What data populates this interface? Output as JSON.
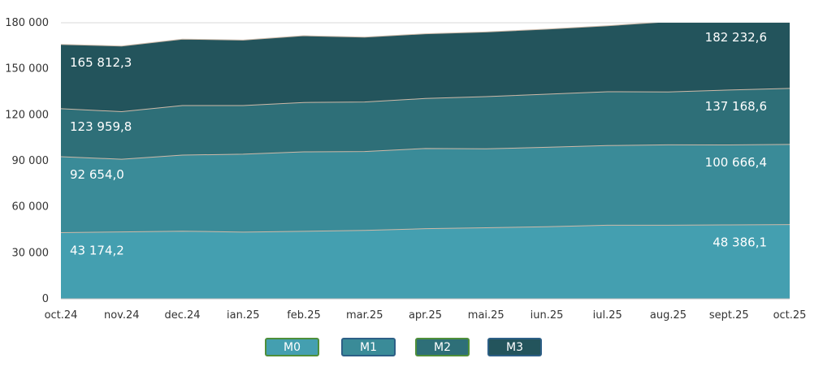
{
  "chart_data": {
    "type": "area",
    "stacked": true,
    "categories": [
      "oct.24",
      "nov.24",
      "dec.24",
      "ian.25",
      "feb.25",
      "mar.25",
      "apr.25",
      "mai.25",
      "iun.25",
      "iul.25",
      "aug.25",
      "sept.25",
      "oct.25"
    ],
    "ylim": [
      0,
      180000
    ],
    "yticks": [
      0,
      30000,
      60000,
      90000,
      120000,
      150000,
      180000
    ],
    "ytick_labels": [
      "0",
      "30 000",
      "60 000",
      "90 000",
      "120 000",
      "150 000",
      "180 000"
    ],
    "grid": true,
    "legend_position": "bottom",
    "series": [
      {
        "name": "M0",
        "color": "#449fb0",
        "cumulative": [
          43174.2,
          43600,
          44100,
          43500,
          44000,
          44600,
          45700,
          46300,
          47000,
          48000,
          48000,
          48200,
          48386.1
        ]
      },
      {
        "name": "M1",
        "color": "#3a8b98",
        "cumulative": [
          92654.0,
          91000,
          93700,
          94300,
          95800,
          96000,
          98000,
          97800,
          98800,
          99900,
          100400,
          100300,
          100666.4
        ]
      },
      {
        "name": "M2",
        "color": "#2e6f78",
        "cumulative": [
          123959.8,
          122000,
          126000,
          126000,
          128000,
          128300,
          130600,
          131800,
          133400,
          135000,
          134900,
          136100,
          137168.6
        ]
      },
      {
        "name": "M3",
        "color": "#23545c",
        "cumulative": [
          165812.3,
          164800,
          169300,
          168700,
          171500,
          170600,
          172800,
          174000,
          175800,
          178000,
          180700,
          181400,
          182232.6
        ]
      }
    ],
    "data_labels": [
      {
        "series": "M0",
        "position": "first",
        "text": "43 174,2"
      },
      {
        "series": "M0",
        "position": "last",
        "text": "48 386,1"
      },
      {
        "series": "M1",
        "position": "first",
        "text": "92 654,0"
      },
      {
        "series": "M1",
        "position": "last",
        "text": "100 666,4"
      },
      {
        "series": "M2",
        "position": "first",
        "text": "123 959,8"
      },
      {
        "series": "M2",
        "position": "last",
        "text": "137 168,6"
      },
      {
        "series": "M3",
        "position": "first",
        "text": "165 812,3"
      },
      {
        "series": "M3",
        "position": "last",
        "text": "182 232,6"
      }
    ]
  },
  "legend": {
    "items": [
      {
        "label": "M0",
        "color": "#449fb0",
        "border": "#4f8f3a"
      },
      {
        "label": "M1",
        "color": "#3a8b98",
        "border": "#2d5f86"
      },
      {
        "label": "M2",
        "color": "#2e6f78",
        "border": "#4f8f3a"
      },
      {
        "label": "M3",
        "color": "#23545c",
        "border": "#2d5f86"
      }
    ]
  }
}
